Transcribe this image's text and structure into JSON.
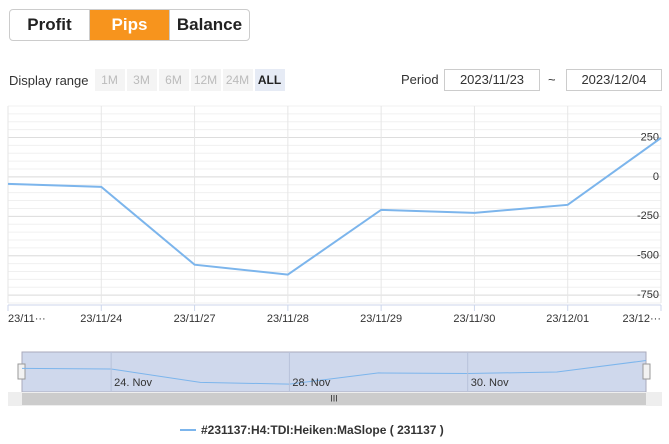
{
  "tabs": {
    "items": [
      "Profit",
      "Pips",
      "Balance"
    ],
    "active": 1
  },
  "display_range": {
    "label": "Display range",
    "options": [
      "1M",
      "3M",
      "6M",
      "12M",
      "24M",
      "ALL"
    ],
    "active": 5
  },
  "period": {
    "label": "Period",
    "from": "2023/11/23",
    "separator": "~",
    "to": "2023/12/04"
  },
  "chart_data": {
    "type": "line",
    "categories": [
      "23/11···",
      "23/11/24",
      "23/11/27",
      "23/11/28",
      "23/11/29",
      "23/11/30",
      "23/12/01",
      "23/12···"
    ],
    "series": [
      {
        "name": "#231137:H4:TDI:Heiken:MaSlope ( 231137 )",
        "color": "#7cb5ec",
        "values": [
          -44,
          -63,
          -557,
          -620,
          -209,
          -228,
          -177,
          247
        ]
      }
    ],
    "ylim": [
      -800,
      450
    ],
    "yticks": [
      -750,
      -500,
      -250,
      0,
      250
    ],
    "grid": true,
    "navigator_labels": [
      "24. Nov",
      "28. Nov",
      "30. Nov"
    ]
  }
}
